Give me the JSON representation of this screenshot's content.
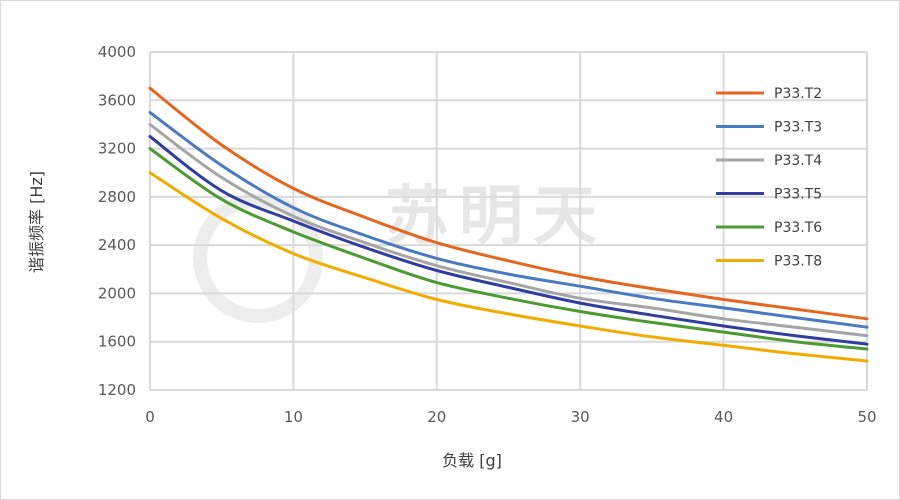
{
  "chart_data": {
    "type": "line",
    "xlabel": "负载 [g]",
    "ylabel": "谐振频率 [Hz]",
    "xlim": [
      0,
      50
    ],
    "ylim": [
      1200,
      4000
    ],
    "xticks": [
      0,
      10,
      20,
      30,
      40,
      50
    ],
    "yticks": [
      1200,
      1600,
      2000,
      2400,
      2800,
      3200,
      3600,
      4000
    ],
    "grid": true,
    "legend_position": "right",
    "watermark": "苏明天",
    "x": [
      0,
      5,
      10,
      15,
      20,
      25,
      30,
      35,
      40,
      45,
      50
    ],
    "series": [
      {
        "name": "P33.T2",
        "color": "#e4661f",
        "values": [
          3700,
          3230,
          2870,
          2630,
          2420,
          2270,
          2140,
          2040,
          1950,
          1870,
          1790
        ]
      },
      {
        "name": "P33.T3",
        "color": "#4a7bc0",
        "values": [
          3500,
          3060,
          2710,
          2480,
          2290,
          2160,
          2060,
          1960,
          1880,
          1800,
          1720
        ]
      },
      {
        "name": "P33.T4",
        "color": "#a5a5a5",
        "values": [
          3400,
          2960,
          2640,
          2420,
          2230,
          2090,
          1960,
          1880,
          1790,
          1720,
          1650
        ]
      },
      {
        "name": "P33.T5",
        "color": "#2f3fa0",
        "values": [
          3300,
          2850,
          2600,
          2380,
          2190,
          2050,
          1920,
          1820,
          1730,
          1650,
          1580
        ]
      },
      {
        "name": "P33.T6",
        "color": "#4b9a32",
        "values": [
          3200,
          2780,
          2510,
          2290,
          2090,
          1960,
          1850,
          1760,
          1680,
          1600,
          1540
        ]
      },
      {
        "name": "P33.T8",
        "color": "#f0ac00",
        "values": [
          3000,
          2620,
          2330,
          2130,
          1950,
          1830,
          1730,
          1640,
          1570,
          1500,
          1440
        ]
      }
    ]
  }
}
